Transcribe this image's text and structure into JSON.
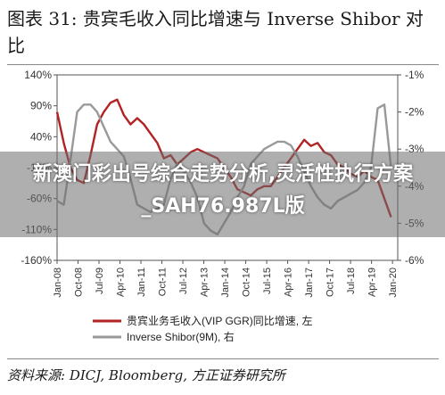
{
  "title": "图表 31:    贵宾毛收入同比增速与 Inverse Shibor 对比",
  "source": "资料来源: DICJ, Bloomberg, 方正证券研究所",
  "overlay_text": "新澳门彩出号综合走势分析,灵活性执行方案_SAH76.987L版",
  "colors": {
    "series1": "#b22222",
    "series2": "#999999",
    "axis": "#555555",
    "grid": "#dddddd"
  },
  "chart_data": {
    "type": "line",
    "title": "",
    "left_axis": {
      "ylim": [
        -160,
        140
      ],
      "ticks": [
        140,
        90,
        40,
        -10,
        -60,
        -110,
        -160
      ],
      "tick_labels": [
        "140%",
        "90%",
        "40%",
        "-10%",
        "-60%",
        "-110%",
        "-160%"
      ]
    },
    "right_axis": {
      "ylim": [
        -6,
        -1
      ],
      "ticks": [
        -1,
        -2,
        -3,
        -4,
        -5,
        -6
      ],
      "tick_labels": [
        "-1%",
        "-2%",
        "-3%",
        "-4%",
        "-5%",
        "-6%"
      ]
    },
    "x_labels": [
      "Jan-08",
      "Oct-08",
      "Jul-09",
      "Apr-10",
      "Jan-11",
      "Oct-11",
      "Jul-12",
      "Apr-13",
      "Jan-14",
      "Oct-14",
      "Jul-15",
      "Apr-16",
      "Jan-17",
      "Oct-17",
      "Jul-18",
      "Apr-19",
      "Jan-20"
    ],
    "x_range": [
      2008.0,
      2020.75
    ],
    "legend_position": "bottom",
    "series": [
      {
        "name": "贵宾业务毛收入(VIP GGR)同比增速, 左",
        "axis": "left",
        "x": [
          2008.0,
          2008.25,
          2008.5,
          2008.75,
          2009.0,
          2009.25,
          2009.5,
          2009.75,
          2010.0,
          2010.25,
          2010.5,
          2010.75,
          2011.0,
          2011.25,
          2011.5,
          2011.75,
          2012.0,
          2012.25,
          2012.5,
          2012.75,
          2013.0,
          2013.25,
          2013.5,
          2013.75,
          2014.0,
          2014.25,
          2014.5,
          2014.75,
          2015.0,
          2015.25,
          2015.5,
          2015.75,
          2016.0,
          2016.25,
          2016.5,
          2016.75,
          2017.0,
          2017.25,
          2017.5,
          2017.75,
          2018.0,
          2018.25,
          2018.5,
          2018.75,
          2019.0,
          2019.25,
          2019.5,
          2019.75,
          2020.0,
          2020.25,
          2020.5
        ],
        "values": [
          80,
          30,
          -10,
          -30,
          -35,
          10,
          60,
          80,
          95,
          100,
          75,
          60,
          70,
          60,
          45,
          30,
          5,
          10,
          -5,
          5,
          15,
          20,
          15,
          10,
          5,
          -10,
          -25,
          -45,
          -50,
          -55,
          -45,
          -40,
          -40,
          -25,
          -10,
          5,
          20,
          35,
          25,
          30,
          15,
          10,
          -5,
          -10,
          -20,
          -25,
          -15,
          -25,
          -30,
          -60,
          -90
        ]
      },
      {
        "name": "Inverse Shibor(9M), 右",
        "axis": "right",
        "x": [
          2008.0,
          2008.25,
          2008.5,
          2008.75,
          2009.0,
          2009.25,
          2009.5,
          2009.75,
          2010.0,
          2010.25,
          2010.5,
          2010.75,
          2011.0,
          2011.25,
          2011.5,
          2011.75,
          2012.0,
          2012.25,
          2012.5,
          2012.75,
          2013.0,
          2013.25,
          2013.5,
          2013.75,
          2014.0,
          2014.25,
          2014.5,
          2014.75,
          2015.0,
          2015.25,
          2015.5,
          2015.75,
          2016.0,
          2016.25,
          2016.5,
          2016.75,
          2017.0,
          2017.25,
          2017.5,
          2017.75,
          2018.0,
          2018.25,
          2018.5,
          2018.75,
          2019.0,
          2019.25,
          2019.5,
          2019.75,
          2020.0,
          2020.25,
          2020.5
        ],
        "values": [
          -4.4,
          -4.5,
          -3.3,
          -2.0,
          -1.8,
          -1.8,
          -2.0,
          -2.4,
          -2.8,
          -3.0,
          -3.2,
          -3.8,
          -4.5,
          -4.6,
          -4.7,
          -4.6,
          -4.5,
          -3.8,
          -3.4,
          -3.6,
          -3.9,
          -4.3,
          -5.0,
          -5.2,
          -5.3,
          -5.0,
          -4.7,
          -4.3,
          -4.0,
          -3.4,
          -3.2,
          -3.0,
          -2.9,
          -2.8,
          -2.8,
          -2.9,
          -3.2,
          -3.6,
          -4.0,
          -4.3,
          -4.5,
          -4.6,
          -4.4,
          -4.3,
          -4.2,
          -4.1,
          -3.9,
          -3.5,
          -1.9,
          -1.8,
          -3.5
        ]
      }
    ]
  }
}
